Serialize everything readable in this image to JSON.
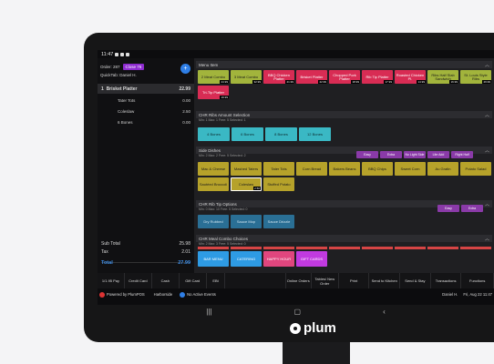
{
  "status": {
    "time": "11:47"
  },
  "order": {
    "label": "Order: 287",
    "badge": "Close 76",
    "quicktab": "QuickTab: Daniel H."
  },
  "ticket": {
    "item": {
      "qty": "1",
      "name": "Brisket Platter",
      "price": "22.99"
    },
    "modifiers": [
      {
        "name": "Tater Tots",
        "price": "0.00"
      },
      {
        "name": "Coleslaw",
        "price": "2.50"
      },
      {
        "name": "6 Bones",
        "price": "0.00"
      }
    ],
    "subtotal": {
      "label": "Sub Total",
      "value": "25.98"
    },
    "tax": {
      "label": "Tax",
      "value": "2.01"
    },
    "total": {
      "label": "Total",
      "value": "27.99"
    }
  },
  "sections": {
    "menu_item": {
      "title": "Menu Item",
      "tiles": [
        {
          "label": "2 Meat Combo",
          "price": "24.99",
          "color": "#a2b43c"
        },
        {
          "label": "3 Meat Combo",
          "price": "32.99",
          "color": "#a2b43c"
        },
        {
          "label": "BBQ Chicken Platter",
          "price": "21.99",
          "color": "#d82c54"
        },
        {
          "label": "Brisket Platter",
          "price": "22.99",
          "color": "#d82c54"
        },
        {
          "label": "Chopped Pork Platter",
          "price": "18.99",
          "color": "#d82c54"
        },
        {
          "label": "Rib Tip Platter",
          "price": "17.99",
          "color": "#d82c54"
        },
        {
          "label": "Roasted Chicken Pl.",
          "price": "14.99",
          "color": "#d82c54"
        },
        {
          "label": "Ribs Half Slab Sandwich",
          "price": "16.99",
          "color": "#a2b43c"
        },
        {
          "label": "St. Louis Style Ribs",
          "price": "29.99",
          "color": "#a2b43c"
        }
      ],
      "tile2": {
        "label": "Tri-Tip Platter",
        "price": "19.99",
        "color": "#d82c54"
      }
    },
    "ribs": {
      "title": "CHR Ribs Amount Selection",
      "sub": "Min: 1   Max: 1   Free: 5   Selected: 1",
      "tiles": [
        "4 Bones",
        "6 Bones",
        "8 Bones",
        "12 Bones"
      ]
    },
    "sides": {
      "title": "Side Dishes",
      "sub": "Min: 2   Max: 2   Free: 5   Selected: 2",
      "pills": [
        "Easy",
        "Extra",
        "No Light Side",
        "Lite Add",
        "Right Half"
      ],
      "tiles": [
        "Mac & Cheese",
        "Mashed Taters",
        "Tater Tots",
        "Corn Bread",
        "Bakers Beans",
        "BBQ Chips",
        "Sweet Corn",
        "Au Gratin",
        "Potato Salad"
      ],
      "tiles2": [
        "Sautéed Broccoli",
        "Coleslaw",
        "Stuffed Potato"
      ],
      "coleslaw_price": "2.50"
    },
    "tip": {
      "title": "CHR Rib Tip Options",
      "sub": "Min: 0   Max: 10   Free: 5   Selected: 0",
      "pills": [
        "Easy",
        "Extra"
      ],
      "tiles": [
        "Dry Rubbed",
        "Sauce Mop",
        "Sauce Drizzle"
      ]
    },
    "combo": {
      "title": "CHR Meal Combo Choices",
      "sub": "Min: 2   Max: 3   Free: 5   Selected: 0",
      "tiles": [
        {
          "label": "BAR MENU",
          "color": "#2e9be4"
        },
        {
          "label": "CATERING",
          "color": "#2e9be4"
        },
        {
          "label": "HAPPY HOUR",
          "color": "#e0467e"
        },
        {
          "label": "GIFT CARDS",
          "color": "#c13ae0"
        }
      ]
    }
  },
  "bottom_buttons": [
    "1/1.95 Pay",
    "Credit Card",
    "Cash",
    "Gift Card",
    "EBt",
    "",
    "Online Orders",
    "Tables/ New Order",
    "Print",
    "Send to Kitchen",
    "Send & Stay",
    "Transactions",
    "Functions"
  ],
  "footer": {
    "powered": "Powered by PlumPOS",
    "station": "Harborside",
    "events": "No Active Events",
    "user": "Daniel H.",
    "datetime": "Fri, Aug 22 11:47"
  },
  "nav": {
    "recent": "|||",
    "home": "▢",
    "back": "‹"
  },
  "brand": {
    "name": "plum"
  }
}
